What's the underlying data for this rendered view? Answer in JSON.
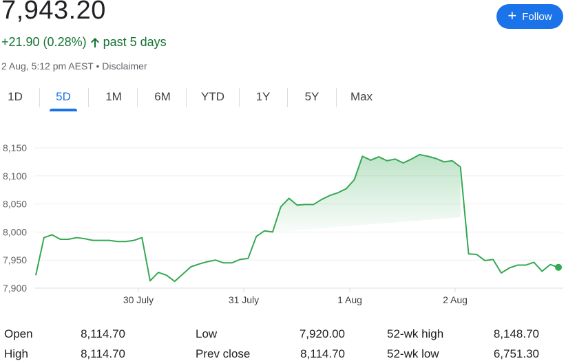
{
  "header": {
    "price": "7,943.20",
    "change": "+21.90 (0.28%)",
    "period": "past 5 days",
    "meta": "2 Aug, 5:12 pm AEST • Disclaimer",
    "follow_label": "Follow"
  },
  "tabs": [
    {
      "label": "1D",
      "active": false
    },
    {
      "label": "5D",
      "active": true
    },
    {
      "label": "1M",
      "active": false
    },
    {
      "label": "6M",
      "active": false
    },
    {
      "label": "YTD",
      "active": false
    },
    {
      "label": "1Y",
      "active": false
    },
    {
      "label": "5Y",
      "active": false
    },
    {
      "label": "Max",
      "active": false
    }
  ],
  "colors": {
    "accent": "#1a73e8",
    "positive": "#137333",
    "line": "#34a853"
  },
  "chart_data": {
    "type": "line",
    "x_ticks": [
      "30 July",
      "31 July",
      "1 Aug",
      "2 Aug"
    ],
    "y_ticks": [
      "8,150",
      "8,100",
      "8,050",
      "8,000",
      "7,950",
      "7,900"
    ],
    "ylim": [
      7900,
      8150
    ],
    "prev_close": 8114.7,
    "series": [
      {
        "values": [
          7923,
          7990,
          7995,
          7987,
          7987,
          7990,
          7988,
          7985,
          7985,
          7985,
          7983,
          7983,
          7985,
          7990,
          7913,
          7928,
          7923,
          7912,
          7925,
          7938,
          7943,
          7947,
          7950,
          7945,
          7945,
          7951,
          7953,
          7992,
          8002,
          8000,
          8045,
          8060,
          8048,
          8049,
          8049,
          8058,
          8065,
          8070,
          8077,
          8093,
          8135,
          8128,
          8134,
          8127,
          8130,
          8123,
          8130,
          8138,
          8135,
          8131,
          8125,
          8127,
          8116,
          7961,
          7960,
          7949,
          7951,
          7927,
          7936,
          7941,
          7941,
          7946,
          7930,
          7942,
          7937
        ]
      }
    ]
  },
  "stats": {
    "open_label": "Open",
    "open_value": "8,114.70",
    "high_label": "High",
    "high_value": "8,114.70",
    "low_label": "Low",
    "low_value": "7,920.00",
    "prevclose_label": "Prev close",
    "prevclose_value": "8,114.70",
    "wk52high_label": "52-wk high",
    "wk52high_value": "8,148.70",
    "wk52low_label": "52-wk low",
    "wk52low_value": "6,751.30"
  }
}
